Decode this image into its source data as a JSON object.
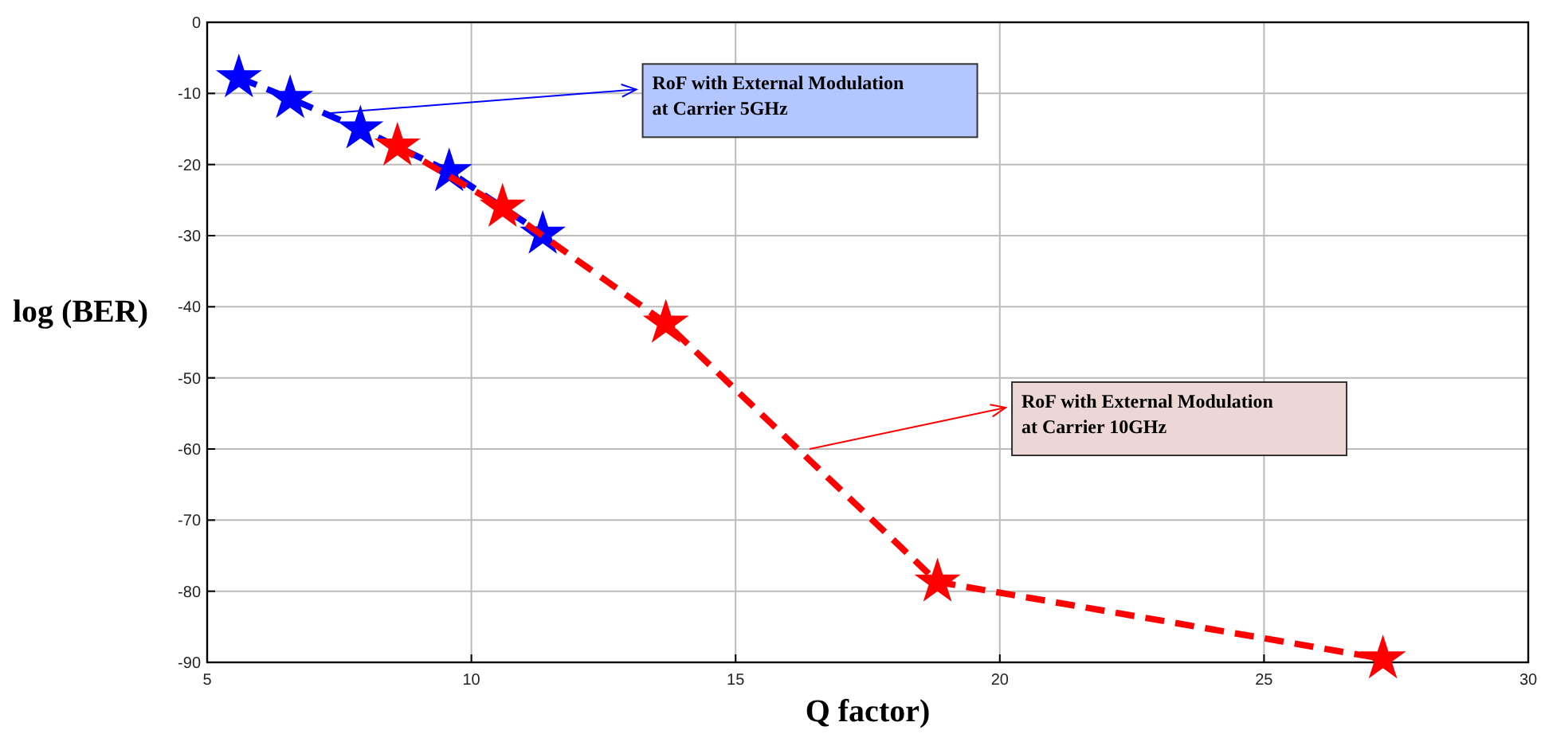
{
  "chart_data": {
    "type": "line",
    "xlabel": "Q factor)",
    "ylabel": "log (BER)",
    "xlim": [
      5,
      30
    ],
    "xticks": [
      5,
      10,
      15,
      20,
      25,
      30
    ],
    "ylim": [
      -90,
      0
    ],
    "yticks": [
      -90,
      -80,
      -70,
      -60,
      -50,
      -40,
      -30,
      -20,
      -10,
      0
    ],
    "grid": true,
    "marker": "star",
    "line_style": "dashed",
    "series": [
      {
        "color": "#0000ff",
        "x": [
          5.6,
          6.57,
          7.9,
          9.58,
          11.35
        ],
        "values": [
          -7.8,
          -10.7,
          -15,
          -21,
          -29.8
        ]
      },
      {
        "color": "#ff0000",
        "x": [
          8.6,
          10.59,
          13.68,
          18.82,
          27.25
        ],
        "values": [
          -17.4,
          -26,
          -42.3,
          -78.7,
          -89.5
        ]
      }
    ],
    "annotations": [
      {
        "text": "RoF with External Modulation\nat Carrier 5GHz",
        "x": 7.3,
        "y": -12.8
      },
      {
        "text": "RoF with External Modulation\nat Carrier 10GHz",
        "x": 16.4,
        "y": -60
      }
    ]
  }
}
